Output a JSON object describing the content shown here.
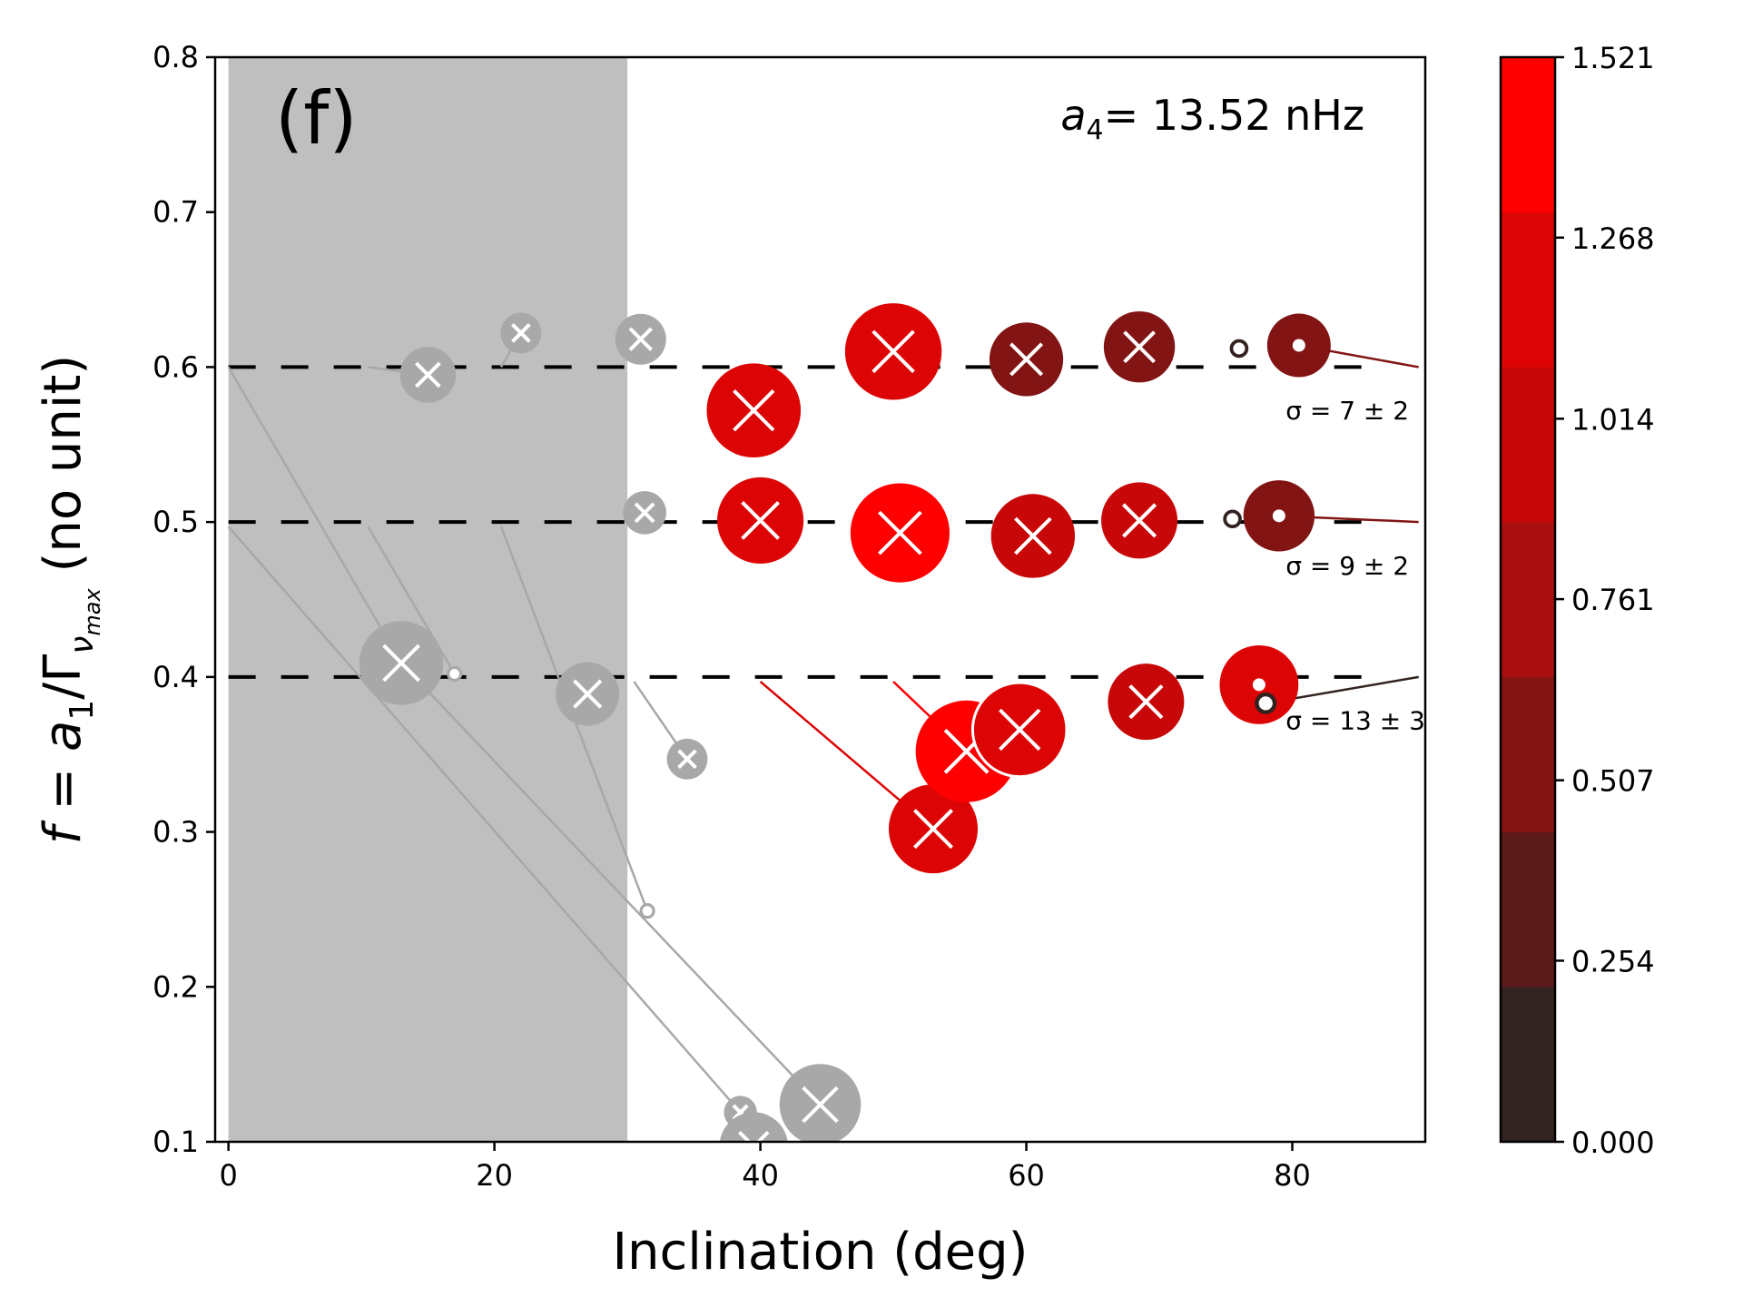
{
  "chart_data": {
    "type": "scatter",
    "panel_label": "(f)",
    "annotation": {
      "symbol": "a",
      "subscript": "4",
      "text": "= 13.52 nHz"
    },
    "xlabel": "Inclination (deg)",
    "ylabel": {
      "prefix": "f = a",
      "sub1": "1",
      "mid": "/Γ",
      "sub2": "ν",
      "sub3": "max",
      "suffix": "  (no unit)"
    },
    "xlim": [
      -1,
      90
    ],
    "ylim": [
      0.1,
      0.8
    ],
    "xticks": [
      "0",
      "20",
      "40",
      "60",
      "80"
    ],
    "xtick_values": [
      0,
      20,
      40,
      60,
      80
    ],
    "yticks": [
      "0.1",
      "0.2",
      "0.3",
      "0.4",
      "0.5",
      "0.6",
      "0.7",
      "0.8"
    ],
    "ytick_values": [
      0.1,
      0.2,
      0.3,
      0.4,
      0.5,
      0.6,
      0.7,
      0.8
    ],
    "excluded_region": {
      "x": [
        0,
        30
      ],
      "color": "#bfbfbf"
    },
    "reference_levels": [
      0.6,
      0.5,
      0.4
    ],
    "sigma_labels": [
      {
        "text": "σ = 7 ± 2",
        "x": 79.5,
        "y": 0.572
      },
      {
        "text": "σ = 9 ± 2",
        "x": 79.5,
        "y": 0.472
      },
      {
        "text": "σ = 13 ± 3",
        "x": 79.5,
        "y": 0.372
      }
    ],
    "colorbar": {
      "ticks": [
        "0.000",
        "0.254",
        "0.507",
        "0.761",
        "1.014",
        "1.268",
        "1.521"
      ],
      "tick_values": [
        0,
        0.254,
        0.507,
        0.761,
        1.014,
        1.268,
        1.521
      ],
      "colors": [
        "#322220",
        "#5b1a1a",
        "#821414",
        "#a90f0f",
        "#c80808",
        "#dc0404",
        "#ff0000"
      ]
    },
    "points": [
      {
        "x": 15,
        "y": 0.595,
        "size": 2.2,
        "value": 0.0,
        "excluded": true,
        "line_from": [
          10.5,
          0.6
        ]
      },
      {
        "x": 22,
        "y": 0.622,
        "size": 1.6,
        "value": 0.0,
        "excluded": true,
        "line_from": [
          20.5,
          0.6
        ]
      },
      {
        "x": 31,
        "y": 0.618,
        "size": 2.0,
        "value": 0.0,
        "excluded": true
      },
      {
        "x": 31.3,
        "y": 0.506,
        "size": 1.7,
        "value": 0.0,
        "excluded": true
      },
      {
        "x": 13,
        "y": 0.409,
        "size": 3.3,
        "value": 0.0,
        "excluded": true,
        "line_from": [
          0,
          0.6
        ]
      },
      {
        "x": 17,
        "y": 0.402,
        "size": 0.3,
        "value": 0.0,
        "excluded": true,
        "hollow": true,
        "line_from": [
          10.5,
          0.497
        ]
      },
      {
        "x": 27,
        "y": 0.389,
        "size": 2.5,
        "value": 0.0,
        "excluded": true
      },
      {
        "x": 34.5,
        "y": 0.347,
        "size": 1.6,
        "value": 0.0,
        "excluded": true,
        "line_from": [
          30.5,
          0.397
        ]
      },
      {
        "x": 31.5,
        "y": 0.249,
        "size": 0.5,
        "value": 0.0,
        "excluded": true,
        "hollow": true,
        "line_from": [
          20.5,
          0.497
        ]
      },
      {
        "x": 38.5,
        "y": 0.119,
        "size": 1.3,
        "value": 0.0,
        "excluded": true,
        "line_from": [
          0,
          0.497
        ]
      },
      {
        "x": 39.5,
        "y": 0.097,
        "size": 2.7,
        "value": 0.0,
        "excluded": true
      },
      {
        "x": 44.5,
        "y": 0.124,
        "size": 3.2,
        "value": 0.0,
        "excluded": true,
        "line_from": [
          13,
          0.409
        ]
      },
      {
        "x": 39.5,
        "y": 0.572,
        "size": 3.7,
        "value": 1.2
      },
      {
        "x": 50,
        "y": 0.61,
        "size": 3.8,
        "value": 1.1
      },
      {
        "x": 60,
        "y": 0.605,
        "size": 2.9,
        "value": 0.5
      },
      {
        "x": 68.5,
        "y": 0.613,
        "size": 2.8,
        "value": 0.6
      },
      {
        "x": 76,
        "y": 0.612,
        "size": 0.6,
        "value": 0.1,
        "hollow": true
      },
      {
        "x": 80.5,
        "y": 0.614,
        "size": 2.5,
        "value": 0.6,
        "dot": true,
        "line_to": [
          89.5,
          0.6
        ]
      },
      {
        "x": 40,
        "y": 0.501,
        "size": 3.4,
        "value": 1.1
      },
      {
        "x": 50.5,
        "y": 0.493,
        "size": 3.9,
        "value": 1.5
      },
      {
        "x": 60.5,
        "y": 0.491,
        "size": 3.3,
        "value": 0.9
      },
      {
        "x": 68.5,
        "y": 0.501,
        "size": 3.0,
        "value": 0.9
      },
      {
        "x": 75.5,
        "y": 0.502,
        "size": 0.6,
        "value": 0.1,
        "hollow": true
      },
      {
        "x": 79,
        "y": 0.504,
        "size": 2.8,
        "value": 0.6,
        "dot": true,
        "line_to": [
          89.5,
          0.5
        ]
      },
      {
        "x": 53,
        "y": 0.302,
        "size": 3.5,
        "value": 1.2,
        "line_from": [
          40,
          0.397
        ]
      },
      {
        "x": 55.5,
        "y": 0.352,
        "size": 4.0,
        "value": 1.5,
        "line_from": [
          50,
          0.397
        ]
      },
      {
        "x": 59.5,
        "y": 0.366,
        "size": 3.7,
        "value": 1.3,
        "outline": true
      },
      {
        "x": 69,
        "y": 0.384,
        "size": 3.0,
        "value": 1.0
      },
      {
        "x": 77.5,
        "y": 0.395,
        "size": 3.1,
        "value": 1.2,
        "dot": true
      },
      {
        "x": 78,
        "y": 0.383,
        "size": 0.7,
        "value": 0.05,
        "hollow": true,
        "line_to": [
          89.5,
          0.4
        ]
      }
    ]
  }
}
